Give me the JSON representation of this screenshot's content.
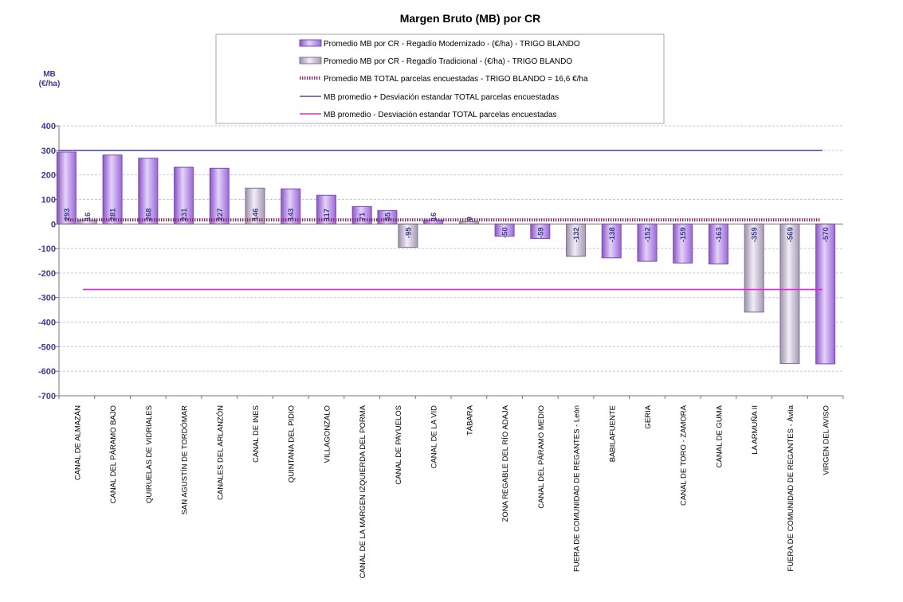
{
  "chart_data": {
    "type": "bar",
    "title": "Margen Bruto (MB) por CR",
    "ylabel_line1": "MB",
    "ylabel_line2": "(€/ha)",
    "ylim": [
      -700,
      400
    ],
    "yticks": [
      400,
      300,
      200,
      100,
      0,
      -100,
      -200,
      -300,
      -400,
      -500,
      -600,
      -700
    ],
    "grid": true,
    "legend_position": "top-center",
    "categories": [
      "CANAL DE ALMAZÁN",
      "CANAL DEL PÁRAMO BAJO",
      "QUIRUELAS DE VIDRIALES",
      "SAN AGUSTÍN DE TORDÓMAR",
      "CANALES DEL ARLANZÓN",
      "CANAL DE INES",
      "QUINTANA DEL PIDIO",
      "VILLAGONZALO",
      "CANAL DE LA MARGEN IZQUIERDA DEL PORMA",
      "CANAL DE PAYUELOS",
      "CANAL DE LA VID",
      "TÁBARA",
      "ZONA REGABLE DEL RÍO ADAJA",
      "CANAL DEL PÁRAMO MEDIO",
      "FUERA DE COMUNIDAD DE REGANTES - León",
      "BABILAFUENTE",
      "GERIA",
      "CANAL DE TORO - ZAMORA",
      "CANAL DE GUMA",
      "LA ARMUÑA II",
      "FUERA DE COMUNIDAD DE REGANTES - Ávila",
      "VIRGEN DEL AVISO"
    ],
    "series": [
      {
        "name": "Promedio  MB  por CR  - Regadío Modernizado - (€/ha) - TRIGO  BLANDO",
        "color": "#b58ae6",
        "values": [
          293,
          281,
          268,
          231,
          227,
          null,
          143,
          117,
          71,
          55,
          16,
          null,
          -50,
          -59,
          null,
          -138,
          -152,
          -159,
          -163,
          null,
          null,
          -570
        ],
        "labels": [
          "293",
          "281",
          "268",
          "231",
          "227",
          null,
          "143",
          "117",
          "71",
          "55",
          "16",
          null,
          "-50",
          "-59",
          null,
          "-138",
          "-152",
          "-159",
          "-163",
          null,
          null,
          "-570"
        ]
      },
      {
        "name": "Promedio  MB  por CR  - Regadío Tradicional - (€/ha) - TRIGO  BLANDO",
        "color": "#c8bdd6",
        "values": [
          16,
          null,
          null,
          null,
          null,
          146,
          null,
          null,
          null,
          -95,
          null,
          9,
          null,
          null,
          -132,
          null,
          null,
          null,
          null,
          -359,
          -569,
          null
        ],
        "labels": [
          "16",
          null,
          null,
          null,
          null,
          "146",
          null,
          null,
          null,
          "-95",
          null,
          "9",
          null,
          null,
          "-132",
          null,
          null,
          null,
          null,
          "-359",
          "-569",
          null
        ]
      }
    ],
    "reference_lines": [
      {
        "name": "Promedio  MB  TOTAL parcelas encuestadas - TRIGO BLANDO = 16,6 €/ha",
        "value": 16.6,
        "color": "#8a2a6a",
        "style": "beaded"
      },
      {
        "name": "MB promedio + Desviación estandar TOTAL parcelas encuestadas",
        "value": 300,
        "color": "#5a4f8f",
        "style": "solid"
      },
      {
        "name": "MB promedio - Desviación estandar TOTAL parcelas encuestadas",
        "value": -267,
        "color": "#ee22dd",
        "style": "solid"
      }
    ]
  }
}
